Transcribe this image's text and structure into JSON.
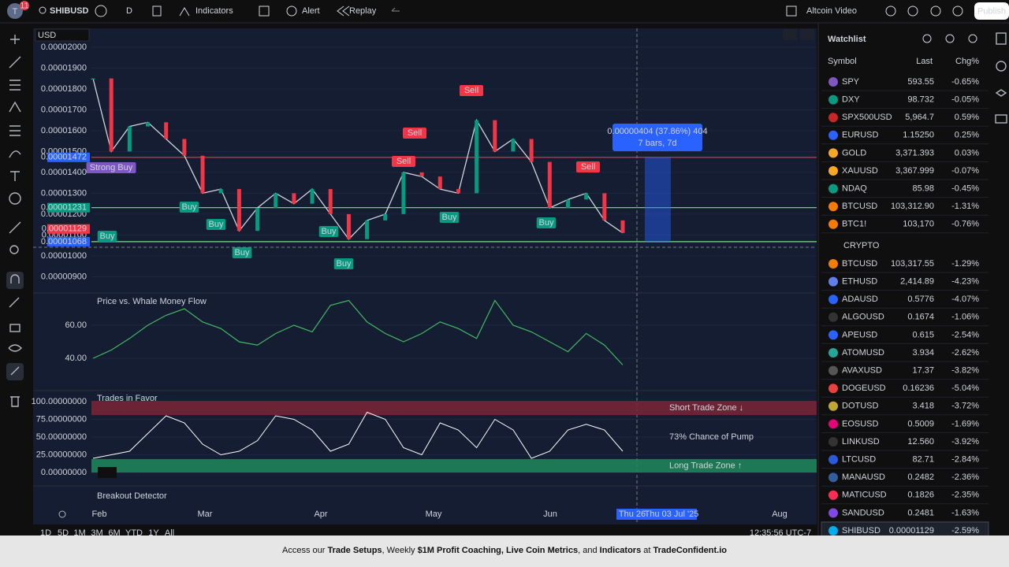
{
  "top_bar": {
    "avatar": "T",
    "badge": "11",
    "symbol": "SHIBUSD",
    "interval": "D",
    "indicators": "Indicators",
    "alert": "Alert",
    "replay": "Replay",
    "layout": "Altcoin Video",
    "publish": "Publish"
  },
  "currency": "USD",
  "price_chart": {
    "type": "line",
    "color": "#d1d4dc",
    "ylim": [
      8.3e-06,
      2.09e-05
    ],
    "yticks": [
      {
        "value": 2e-05,
        "label": "0.00002000"
      },
      {
        "value": 1.9e-05,
        "label": "0.00001900"
      },
      {
        "value": 1.8e-05,
        "label": "0.00001800"
      },
      {
        "value": 1.7e-05,
        "label": "0.00001700"
      },
      {
        "value": 1.6e-05,
        "label": "0.00001600"
      },
      {
        "value": 1.5e-05,
        "label": "0.00001500"
      },
      {
        "value": 1.4e-05,
        "label": "0.00001400"
      },
      {
        "value": 1.3e-05,
        "label": "0.00001300"
      },
      {
        "value": 1.2e-05,
        "label": "0.00001200"
      },
      {
        "value": 1.1e-05,
        "label": "0.00001100"
      },
      {
        "value": 1e-05,
        "label": "0.00001000"
      },
      {
        "value": 9e-06,
        "label": "0.00000900"
      }
    ],
    "values": [
      1.85e-05,
      1.5e-05,
      1.62e-05,
      1.64e-05,
      1.56e-05,
      1.48e-05,
      1.3e-05,
      1.32e-05,
      1.12e-05,
      1.23e-05,
      1.3e-05,
      1.25e-05,
      1.32e-05,
      1.2e-05,
      1.08e-05,
      1.17e-05,
      1.2e-05,
      1.4e-05,
      1.38e-05,
      1.32e-05,
      1.3e-05,
      1.65e-05,
      1.5e-05,
      1.56e-05,
      1.45e-05,
      1.23e-05,
      1.27e-05,
      1.3e-05,
      1.17e-05,
      1.11e-05
    ],
    "levels": [
      {
        "value": 1.472e-05,
        "label": "0.00001472",
        "color": "#2962ff",
        "line": "#f23645"
      },
      {
        "value": 1.231e-05,
        "label": "0.00001231",
        "color": "#089981",
        "line": "#7ee08a"
      },
      {
        "value": 1.129e-05,
        "label": "0.00001129",
        "color": "#f23645",
        "line": null
      },
      {
        "value": 1.068e-05,
        "label": "0.00001068",
        "color": "#2962ff",
        "line": "#7ee08a"
      }
    ],
    "signals": [
      {
        "label": "Strong Buy",
        "color": "#7e57c2"
      },
      {
        "label": "Buy",
        "color": "#089981"
      },
      {
        "label": "Buy",
        "color": "#089981"
      },
      {
        "label": "Buy",
        "color": "#089981"
      },
      {
        "label": "Buy",
        "color": "#089981"
      },
      {
        "label": "Buy",
        "color": "#089981"
      },
      {
        "label": "Buy",
        "color": "#089981"
      },
      {
        "label": "Buy",
        "color": "#089981"
      },
      {
        "label": "Buy",
        "color": "#089981"
      },
      {
        "label": "Sell",
        "color": "#f23645"
      },
      {
        "label": "Sell",
        "color": "#f23645"
      },
      {
        "label": "Sell",
        "color": "#f23645"
      },
      {
        "label": "Sell",
        "color": "#f23645"
      }
    ],
    "measure": [
      "0.00000404 (37.86%) 404",
      "7 bars, 7d"
    ]
  },
  "whale_flow": {
    "type": "line",
    "title": "Price vs. Whale Money Flow",
    "color": "#43b864",
    "ylim": [
      22.4,
      79.5
    ],
    "yticks": [
      {
        "value": 60,
        "label": "60.00"
      },
      {
        "value": 40,
        "label": "40.00"
      }
    ],
    "values": [
      40,
      45,
      52,
      60,
      66,
      70,
      62,
      58,
      50,
      48,
      55,
      60,
      56,
      72,
      75,
      62,
      55,
      50,
      55,
      62,
      58,
      52,
      75,
      60,
      56,
      50,
      44,
      55,
      48,
      36
    ]
  },
  "trades_in_favor": {
    "type": "line",
    "title": "Trades in Favor",
    "color": "#ffffff",
    "ylim": [
      -13.3,
      114.4
    ],
    "yticks": [
      {
        "value": 100,
        "label": "100.00000000"
      },
      {
        "value": 75,
        "label": "75.00000000"
      },
      {
        "value": 50,
        "label": "50.00000000"
      },
      {
        "value": 25,
        "label": "25.00000000"
      },
      {
        "value": 0,
        "label": "0.00000000"
      }
    ],
    "values": [
      20,
      25,
      30,
      55,
      80,
      70,
      40,
      25,
      30,
      45,
      80,
      75,
      60,
      30,
      40,
      85,
      75,
      35,
      25,
      70,
      60,
      35,
      75,
      60,
      20,
      30,
      60,
      68,
      60,
      30
    ],
    "zones": [
      {
        "label": "Short Trade Zone ↓",
        "from": 81,
        "to": 101,
        "color": "#7a2436"
      },
      {
        "label": "Long Trade Zone ↑",
        "from": 0,
        "to": 19,
        "color": "#1f8a5c"
      }
    ],
    "note": "73% Chance of Pump"
  },
  "breakout": {
    "title": "Breakout Detector"
  },
  "time_axis": {
    "labels": [
      "Feb",
      "Mar",
      "Apr",
      "May",
      "Jun",
      "Aug"
    ],
    "cursor": [
      "Thu 26",
      "Thu 03 Jul '25"
    ],
    "clock": "12:35:56 UTC-7"
  },
  "ranges": [
    "1D",
    "5D",
    "1M",
    "3M",
    "6M",
    "YTD",
    "1Y",
    "All"
  ],
  "watchlist": {
    "title": "Watchlist",
    "columns": [
      "Symbol",
      "Last",
      "Chg%"
    ],
    "rows": [
      [
        "SPY",
        "593.55",
        "-0.65%"
      ],
      [
        "DXY",
        "98.732",
        "-0.05%"
      ],
      [
        "SPX500USD",
        "5,964.7",
        "0.59%"
      ],
      [
        "EURUSD",
        "1.15250",
        "0.25%"
      ],
      [
        "GOLD",
        "3,371.393",
        "0.03%"
      ],
      [
        "XAUUSD",
        "3,367.999",
        "-0.07%"
      ],
      [
        "NDAQ",
        "85.98",
        "-0.45%"
      ],
      [
        "BTCUSD",
        "103,312.90",
        "-1.31%"
      ],
      [
        "BTC1!",
        "103,170",
        "-0.76%"
      ]
    ],
    "section": "CRYPTO",
    "crypto_rows": [
      [
        "BTCUSD",
        "103,317.55",
        "-1.29%"
      ],
      [
        "ETHUSD",
        "2,414.89",
        "-4.23%"
      ],
      [
        "ADAUSD",
        "0.5776",
        "-4.07%"
      ],
      [
        "ALGOUSD",
        "0.1674",
        "-1.06%"
      ],
      [
        "APEUSD",
        "0.615",
        "-2.54%"
      ],
      [
        "ATOMUSD",
        "3.934",
        "-2.62%"
      ],
      [
        "AVAXUSD",
        "17.37",
        "-3.82%"
      ],
      [
        "DOGEUSD",
        "0.16236",
        "-5.04%"
      ],
      [
        "DOTUSD",
        "3.418",
        "-3.72%"
      ],
      [
        "EOSUSD",
        "0.5009",
        "-1.69%"
      ],
      [
        "LINKUSD",
        "12.560",
        "-3.92%"
      ],
      [
        "LTCUSD",
        "82.71",
        "-2.84%"
      ],
      [
        "MANAUSD",
        "0.2482",
        "-2.36%"
      ],
      [
        "MATICUSD",
        "0.1826",
        "-2.35%"
      ],
      [
        "SANDUSD",
        "0.2481",
        "-1.63%"
      ],
      [
        "SHIBUSD",
        "0.00001129",
        "-2.59%"
      ]
    ]
  },
  "banner": [
    {
      "text": "Access our ",
      "bold": false
    },
    {
      "text": "Trade Setups",
      "bold": true
    },
    {
      "text": ", Weekly ",
      "bold": false
    },
    {
      "text": "$1M Profit Coaching, Live Coin Metrics",
      "bold": true
    },
    {
      "text": ", and ",
      "bold": false
    },
    {
      "text": "Indicators",
      "bold": true
    },
    {
      "text": " at ",
      "bold": false
    },
    {
      "text": "TradeConfident.io",
      "bold": true
    }
  ]
}
